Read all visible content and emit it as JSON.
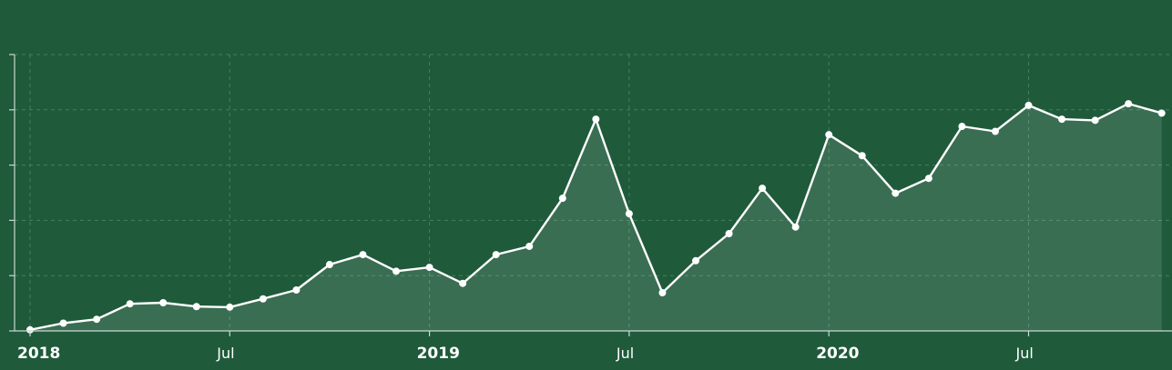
{
  "colors": {
    "background": "#1f5a3b",
    "line": "#ffffff",
    "grid": "#4f8a66"
  },
  "chart_data": {
    "type": "area",
    "title": "",
    "xlabel": "",
    "ylabel": "",
    "grid": true,
    "x_ticks": [
      {
        "label": "2018",
        "x": "2018-01-01",
        "major": true
      },
      {
        "label": "Jul",
        "x": "2018-07-01",
        "major": false
      },
      {
        "label": "2019",
        "x": "2019-01-01",
        "major": true
      },
      {
        "label": "Jul",
        "x": "2019-07-01",
        "major": false
      },
      {
        "label": "2020",
        "x": "2020-01-01",
        "major": true
      },
      {
        "label": "Jul",
        "x": "2020-07-01",
        "major": false
      }
    ],
    "ylim": [
      0,
      5
    ],
    "y_tick_count": 6,
    "x": [
      "2018-01",
      "2018-02",
      "2018-03",
      "2018-04",
      "2018-05",
      "2018-06",
      "2018-07",
      "2018-08",
      "2018-09",
      "2018-10",
      "2018-11",
      "2018-12",
      "2019-01",
      "2019-02",
      "2019-03",
      "2019-04",
      "2019-05",
      "2019-06",
      "2019-07",
      "2019-08",
      "2019-09",
      "2019-10",
      "2019-11",
      "2019-12",
      "2020-01",
      "2020-02",
      "2020-03",
      "2020-04",
      "2020-05",
      "2020-06",
      "2020-07",
      "2020-08",
      "2020-09",
      "2020-10",
      "2020-11"
    ],
    "series": [
      {
        "values": [
          0.02,
          0.14,
          0.21,
          0.49,
          0.51,
          0.44,
          0.43,
          0.58,
          0.74,
          1.2,
          1.38,
          1.08,
          1.15,
          0.86,
          1.38,
          1.53,
          2.4,
          3.83,
          2.12,
          0.69,
          1.27,
          1.76,
          2.58,
          1.88,
          3.55,
          3.17,
          2.49,
          2.76,
          3.7,
          3.61,
          4.08,
          3.83,
          3.81,
          4.11,
          3.94
        ]
      }
    ]
  }
}
